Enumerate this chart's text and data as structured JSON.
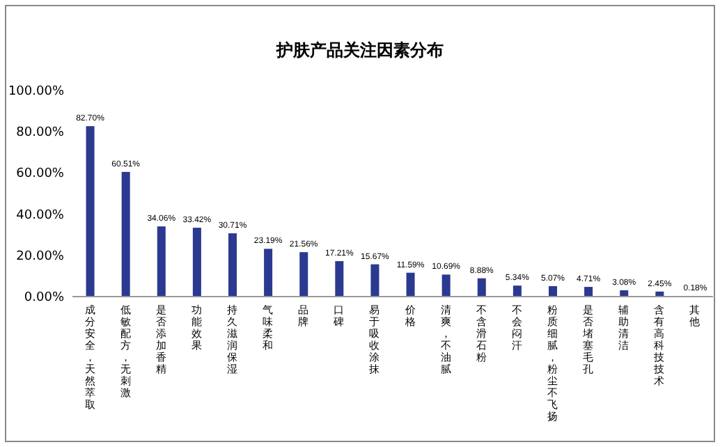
{
  "chart_data": {
    "type": "bar",
    "title": "护肤产品关注因素分布",
    "categories": [
      "成分安全，天然萃取",
      "低敏配方，无刺激",
      "是否添加香精",
      "功能效果",
      "持久滋润保湿",
      "气味柔和",
      "品牌",
      "口碑",
      "易于吸收涂抹",
      "价格",
      "清爽，不油腻",
      "不含滑石粉",
      "不会闷汗",
      "粉质细腻，粉尘不飞扬",
      "是否堵塞毛孔",
      "辅助清洁",
      "含有高科技技术",
      "其他"
    ],
    "values": [
      82.7,
      60.51,
      34.06,
      33.42,
      30.71,
      23.19,
      21.56,
      17.21,
      15.67,
      11.59,
      10.69,
      8.88,
      5.34,
      5.07,
      4.71,
      3.08,
      2.45,
      0.18
    ],
    "value_labels": [
      "82.70%",
      "60.51%",
      "34.06%",
      "33.42%",
      "30.71%",
      "23.19%",
      "21.56%",
      "17.21%",
      "15.67%",
      "11.59%",
      "10.69%",
      "8.88%",
      "5.34%",
      "5.07%",
      "4.71%",
      "3.08%",
      "2.45%",
      "0.18%"
    ],
    "color": "#2b3990",
    "ylim": [
      0,
      100
    ],
    "yticks": [
      {
        "value": 0,
        "label": "0.00%"
      },
      {
        "value": 20,
        "label": "20.00%"
      },
      {
        "value": 40,
        "label": "40.00%"
      },
      {
        "value": 60,
        "label": "60.00%"
      },
      {
        "value": 80,
        "label": "80.00%"
      },
      {
        "value": 100,
        "label": "100.00%"
      }
    ]
  }
}
